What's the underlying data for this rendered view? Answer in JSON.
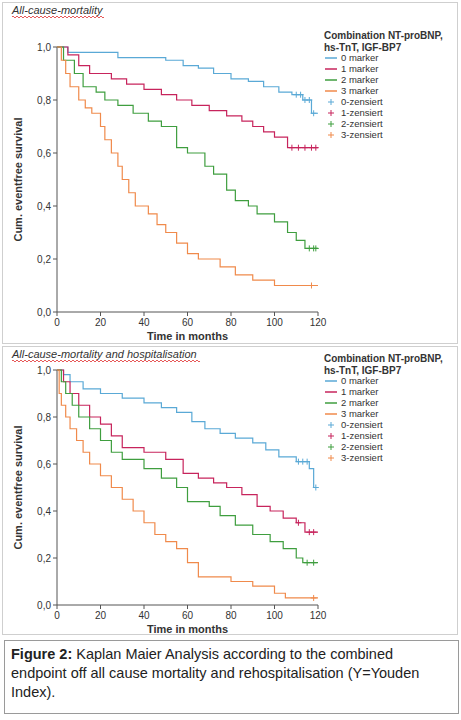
{
  "chart_data": [
    {
      "type": "line",
      "title": "All-cause-mortality",
      "x_label": "Time in months",
      "y_label": "Cum. eventfree survival",
      "legend_title": "Combination NT-proBNP, hs-TnT, IGF-BP7",
      "legend": "right",
      "grid": false,
      "xlim": [
        0,
        120
      ],
      "ylim": [
        0,
        1
      ],
      "xticks": [
        0,
        20,
        40,
        60,
        80,
        100,
        120
      ],
      "yticks": [
        {
          "value": 0,
          "label": "0,0"
        },
        {
          "value": 0.2,
          "label": "0,2"
        },
        {
          "value": 0.4,
          "label": "0,4"
        },
        {
          "value": 0.6,
          "label": "0,6"
        },
        {
          "value": 0.8,
          "label": "0,8"
        },
        {
          "value": 1,
          "label": "1,0"
        }
      ],
      "series": [
        {
          "name": "0 marker",
          "color": "#5aa9d6",
          "type": "line",
          "line_style": "step",
          "x": [
            0,
            5,
            28,
            50,
            58,
            65,
            72,
            80,
            88,
            95,
            102,
            108,
            113,
            117,
            120
          ],
          "values": [
            1,
            0.98,
            0.96,
            0.95,
            0.93,
            0.92,
            0.9,
            0.88,
            0.87,
            0.85,
            0.83,
            0.82,
            0.8,
            0.75,
            0.75
          ]
        },
        {
          "name": "1 marker",
          "color": "#c7245c",
          "type": "line",
          "line_style": "step",
          "x": [
            0,
            5,
            10,
            15,
            25,
            32,
            40,
            48,
            55,
            62,
            70,
            78,
            85,
            90,
            95,
            100,
            106,
            120
          ],
          "values": [
            1,
            0.97,
            0.93,
            0.9,
            0.88,
            0.86,
            0.84,
            0.82,
            0.8,
            0.78,
            0.76,
            0.74,
            0.72,
            0.7,
            0.68,
            0.66,
            0.62,
            0.62
          ]
        },
        {
          "name": "2 marker",
          "color": "#3f9e3f",
          "type": "line",
          "line_style": "step",
          "x": [
            0,
            3,
            8,
            12,
            18,
            22,
            28,
            35,
            42,
            48,
            55,
            60,
            68,
            72,
            78,
            82,
            88,
            92,
            100,
            106,
            110,
            114,
            120
          ],
          "values": [
            1,
            0.95,
            0.9,
            0.85,
            0.83,
            0.8,
            0.78,
            0.75,
            0.72,
            0.7,
            0.62,
            0.6,
            0.55,
            0.52,
            0.46,
            0.42,
            0.4,
            0.37,
            0.34,
            0.3,
            0.27,
            0.24,
            0.24
          ]
        },
        {
          "name": "3 marker",
          "color": "#f08a4b",
          "type": "line",
          "line_style": "step",
          "x": [
            0,
            2,
            4,
            6,
            10,
            13,
            16,
            20,
            22,
            25,
            28,
            30,
            33,
            36,
            42,
            46,
            50,
            55,
            60,
            65,
            75,
            82,
            90,
            100,
            120
          ],
          "values": [
            1,
            0.95,
            0.9,
            0.85,
            0.8,
            0.77,
            0.75,
            0.7,
            0.65,
            0.6,
            0.55,
            0.5,
            0.45,
            0.4,
            0.37,
            0.33,
            0.3,
            0.26,
            0.22,
            0.2,
            0.17,
            0.14,
            0.12,
            0.1,
            0.1
          ]
        },
        {
          "name": "0-zensiert",
          "color": "#5aa9d6",
          "type": "scatter",
          "marker": "plus",
          "x": [
            110,
            112,
            114,
            116,
            118
          ],
          "values": [
            0.82,
            0.82,
            0.8,
            0.8,
            0.75
          ]
        },
        {
          "name": "1-zensiert",
          "color": "#c7245c",
          "type": "scatter",
          "marker": "plus",
          "x": [
            108,
            111,
            114,
            117,
            119
          ],
          "values": [
            0.62,
            0.62,
            0.62,
            0.62,
            0.62
          ]
        },
        {
          "name": "2-zensiert",
          "color": "#3f9e3f",
          "type": "scatter",
          "marker": "plus",
          "x": [
            116,
            118,
            119
          ],
          "values": [
            0.24,
            0.24,
            0.24
          ]
        },
        {
          "name": "3-zensiert",
          "color": "#f08a4b",
          "type": "scatter",
          "marker": "plus",
          "x": [
            117
          ],
          "values": [
            0.1
          ]
        }
      ]
    },
    {
      "type": "line",
      "title": "All-cause-mortality and hospitalisation",
      "x_label": "Time in months",
      "y_label": "Cum. eventfree survival",
      "legend_title": "Combination NT-proBNP, hs-TnT, IGF-BP7",
      "legend": "right",
      "grid": false,
      "xlim": [
        0,
        120
      ],
      "ylim": [
        0,
        1
      ],
      "xticks": [
        0,
        20,
        40,
        60,
        80,
        100,
        120
      ],
      "yticks": [
        {
          "value": 0,
          "label": "0,0"
        },
        {
          "value": 0.2,
          "label": "0,2"
        },
        {
          "value": 0.4,
          "label": "0,4"
        },
        {
          "value": 0.6,
          "label": "0,6"
        },
        {
          "value": 0.8,
          "label": "0,8"
        },
        {
          "value": 1,
          "label": "1,0"
        }
      ],
      "series": [
        {
          "name": "0 marker",
          "color": "#5aa9d6",
          "type": "line",
          "line_style": "step",
          "x": [
            0,
            3,
            6,
            12,
            20,
            30,
            40,
            48,
            55,
            62,
            68,
            75,
            82,
            90,
            96,
            102,
            110,
            116,
            118,
            120
          ],
          "values": [
            1,
            0.98,
            0.95,
            0.92,
            0.9,
            0.88,
            0.86,
            0.84,
            0.82,
            0.78,
            0.75,
            0.73,
            0.71,
            0.69,
            0.66,
            0.63,
            0.61,
            0.58,
            0.5,
            0.5
          ]
        },
        {
          "name": "1 marker",
          "color": "#c7245c",
          "type": "line",
          "line_style": "step",
          "x": [
            0,
            3,
            6,
            10,
            15,
            20,
            25,
            30,
            40,
            50,
            58,
            65,
            72,
            78,
            85,
            92,
            98,
            104,
            110,
            114,
            120
          ],
          "values": [
            1,
            0.95,
            0.9,
            0.85,
            0.8,
            0.77,
            0.72,
            0.67,
            0.65,
            0.62,
            0.56,
            0.54,
            0.52,
            0.5,
            0.47,
            0.42,
            0.4,
            0.37,
            0.35,
            0.31,
            0.31
          ]
        },
        {
          "name": "2 marker",
          "color": "#3f9e3f",
          "type": "line",
          "line_style": "step",
          "x": [
            0,
            2,
            4,
            7,
            10,
            15,
            20,
            25,
            30,
            40,
            48,
            55,
            60,
            70,
            75,
            82,
            90,
            98,
            104,
            110,
            113,
            120
          ],
          "values": [
            1,
            0.95,
            0.9,
            0.85,
            0.8,
            0.75,
            0.7,
            0.65,
            0.62,
            0.58,
            0.54,
            0.5,
            0.44,
            0.42,
            0.38,
            0.34,
            0.3,
            0.27,
            0.24,
            0.2,
            0.18,
            0.18
          ]
        },
        {
          "name": "3 marker",
          "color": "#f08a4b",
          "type": "line",
          "line_style": "step",
          "x": [
            0,
            1,
            2,
            4,
            6,
            9,
            12,
            15,
            20,
            25,
            30,
            35,
            40,
            45,
            50,
            55,
            60,
            65,
            80,
            90,
            100,
            105,
            120
          ],
          "values": [
            1,
            0.9,
            0.85,
            0.8,
            0.75,
            0.7,
            0.65,
            0.6,
            0.55,
            0.5,
            0.45,
            0.4,
            0.35,
            0.3,
            0.27,
            0.24,
            0.18,
            0.12,
            0.1,
            0.08,
            0.05,
            0.03,
            0.03
          ]
        },
        {
          "name": "0-zensiert",
          "color": "#5aa9d6",
          "type": "scatter",
          "marker": "plus",
          "x": [
            111,
            113,
            115,
            119
          ],
          "values": [
            0.61,
            0.61,
            0.61,
            0.5
          ]
        },
        {
          "name": "1-zensiert",
          "color": "#c7245c",
          "type": "scatter",
          "marker": "plus",
          "x": [
            111,
            116,
            118
          ],
          "values": [
            0.35,
            0.31,
            0.31
          ]
        },
        {
          "name": "2-zensiert",
          "color": "#3f9e3f",
          "type": "scatter",
          "marker": "plus",
          "x": [
            115,
            118
          ],
          "values": [
            0.18,
            0.18
          ]
        },
        {
          "name": "3-zensiert",
          "color": "#f08a4b",
          "type": "scatter",
          "marker": "plus",
          "x": [
            118
          ],
          "values": [
            0.03
          ]
        }
      ]
    }
  ],
  "caption": {
    "label": "Figure 2:",
    "text": "Kaplan Maier Analysis according to the combined endpoint off all cause mortality and rehospitalisation (Y=Youden Index)."
  }
}
